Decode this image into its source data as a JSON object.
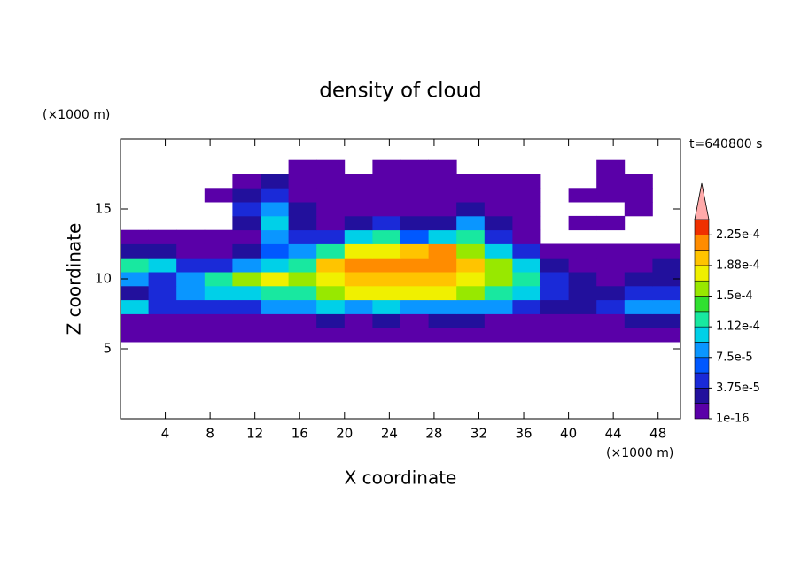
{
  "chart_data": {
    "type": "contour",
    "title": "density of cloud",
    "xlabel": "X coordinate",
    "ylabel": "Z coordinate",
    "x_unit": "(×1000 m)",
    "y_unit": "(×1000 m)",
    "annotation": "t=640800 s",
    "xlim": [
      0,
      50
    ],
    "ylim": [
      0,
      20
    ],
    "xticks": [
      4,
      8,
      12,
      16,
      20,
      24,
      28,
      32,
      36,
      40,
      44,
      48
    ],
    "yticks": [
      5,
      10,
      15
    ],
    "x": [
      1.25,
      3.75,
      6.25,
      8.75,
      11.25,
      13.75,
      16.25,
      18.75,
      21.25,
      23.75,
      26.25,
      28.75,
      31.25,
      33.75,
      36.25,
      38.75,
      41.25,
      43.75,
      46.25,
      48.75
    ],
    "y": [
      6,
      7,
      8,
      9,
      10,
      11,
      12,
      13,
      14,
      15,
      16,
      17,
      18
    ],
    "z": [
      [
        1e-05,
        1e-05,
        1e-05,
        1e-05,
        1e-05,
        1e-05,
        1e-05,
        1e-05,
        1e-05,
        1e-05,
        1e-05,
        1e-05,
        1e-05,
        1e-05,
        1e-05,
        1e-05,
        1e-05,
        1e-05,
        1e-05,
        1e-05
      ],
      [
        1e-05,
        1e-05,
        1e-05,
        1e-05,
        1e-05,
        1e-05,
        1e-05,
        3e-05,
        1e-05,
        3e-05,
        1e-05,
        3e-05,
        3e-05,
        1e-05,
        1e-05,
        1e-05,
        1e-05,
        1e-05,
        3e-05,
        3e-05
      ],
      [
        0.0001,
        5e-05,
        5e-05,
        5e-05,
        5e-05,
        8e-05,
        8e-05,
        0.0001,
        8e-05,
        0.0001,
        8e-05,
        8e-05,
        8e-05,
        8e-05,
        5e-05,
        3e-05,
        3e-05,
        5e-05,
        8e-05,
        8e-05
      ],
      [
        3e-05,
        5e-05,
        8e-05,
        0.0001,
        0.0001,
        0.00013,
        0.00013,
        0.00016,
        0.00018,
        0.00018,
        0.00018,
        0.00018,
        0.00016,
        0.00013,
        0.0001,
        5e-05,
        3e-05,
        3e-05,
        5e-05,
        5e-05
      ],
      [
        8e-05,
        5e-05,
        8e-05,
        0.00013,
        0.00016,
        0.00018,
        0.00016,
        0.00018,
        0.0002,
        0.0002,
        0.00019,
        0.0002,
        0.00018,
        0.00016,
        0.00013,
        5e-05,
        3e-05,
        1e-05,
        3e-05,
        3e-05
      ],
      [
        0.00013,
        0.0001,
        5e-05,
        5e-05,
        8e-05,
        0.0001,
        0.00013,
        0.0002,
        0.00021,
        0.00021,
        0.00022,
        0.00022,
        0.0002,
        0.00016,
        0.0001,
        3e-05,
        1e-05,
        1e-05,
        1e-05,
        3e-05
      ],
      [
        3e-05,
        3e-05,
        1e-05,
        1e-05,
        3e-05,
        7e-05,
        8e-05,
        0.00013,
        0.00018,
        0.00018,
        0.0002,
        0.00022,
        0.00016,
        0.0001,
        5e-05,
        1e-05,
        1e-05,
        1e-05,
        1e-05,
        1e-05
      ],
      [
        1e-05,
        1e-05,
        1e-05,
        1e-05,
        1e-05,
        8e-05,
        5e-05,
        5e-05,
        0.0001,
        0.00013,
        7e-05,
        0.0001,
        0.00013,
        5e-05,
        1e-05,
        null,
        null,
        null,
        null,
        null
      ],
      [
        null,
        null,
        null,
        null,
        3e-05,
        0.0001,
        3e-05,
        1e-05,
        3e-05,
        5e-05,
        3e-05,
        3e-05,
        8e-05,
        3e-05,
        1e-05,
        null,
        1e-05,
        1e-05,
        null,
        null
      ],
      [
        null,
        null,
        null,
        null,
        5e-05,
        8e-05,
        3e-05,
        1e-05,
        1e-05,
        1e-05,
        1e-05,
        1e-05,
        3e-05,
        1e-05,
        1e-05,
        null,
        null,
        null,
        1e-05,
        null
      ],
      [
        null,
        null,
        null,
        1e-05,
        3e-05,
        5e-05,
        1e-05,
        1e-05,
        1e-05,
        1e-05,
        1e-05,
        1e-05,
        1e-05,
        1e-05,
        1e-05,
        null,
        1e-05,
        1e-05,
        1e-05,
        null
      ],
      [
        null,
        null,
        null,
        null,
        1e-05,
        3e-05,
        1e-05,
        1e-05,
        1e-05,
        1e-05,
        1e-05,
        1e-05,
        1e-05,
        1e-05,
        1e-05,
        null,
        null,
        1e-05,
        1e-05,
        null
      ],
      [
        null,
        null,
        null,
        null,
        null,
        null,
        1e-05,
        1e-05,
        null,
        1e-05,
        1e-05,
        1e-05,
        null,
        null,
        null,
        null,
        null,
        1e-05,
        null,
        null
      ]
    ],
    "levels": [
      1e-16,
      1.875e-05,
      3.75e-05,
      5.625e-05,
      7.5e-05,
      9.375e-05,
      0.0001125,
      0.00013125,
      0.00015,
      0.00016875,
      0.0001875,
      0.00020625,
      0.000225,
      0.00024375
    ],
    "colors": [
      "#5a00a8",
      "#22109c",
      "#1a2ad8",
      "#0058ff",
      "#0a96ff",
      "#00d0e8",
      "#18e8a0",
      "#30e030",
      "#98e800",
      "#f0f000",
      "#ffc400",
      "#ff8c00",
      "#f03000"
    ],
    "extend_color": "#ffaaaa",
    "cbar_ticks": [
      {
        "value": 1e-16,
        "label": "1e-16"
      },
      {
        "value": 3.75e-05,
        "label": "3.75e-5"
      },
      {
        "value": 7.5e-05,
        "label": "7.5e-5"
      },
      {
        "value": 0.0001125,
        "label": "1.12e-4"
      },
      {
        "value": 0.00015,
        "label": "1.5e-4"
      },
      {
        "value": 0.0001875,
        "label": "1.88e-4"
      },
      {
        "value": 0.000225,
        "label": "2.25e-4"
      }
    ]
  }
}
